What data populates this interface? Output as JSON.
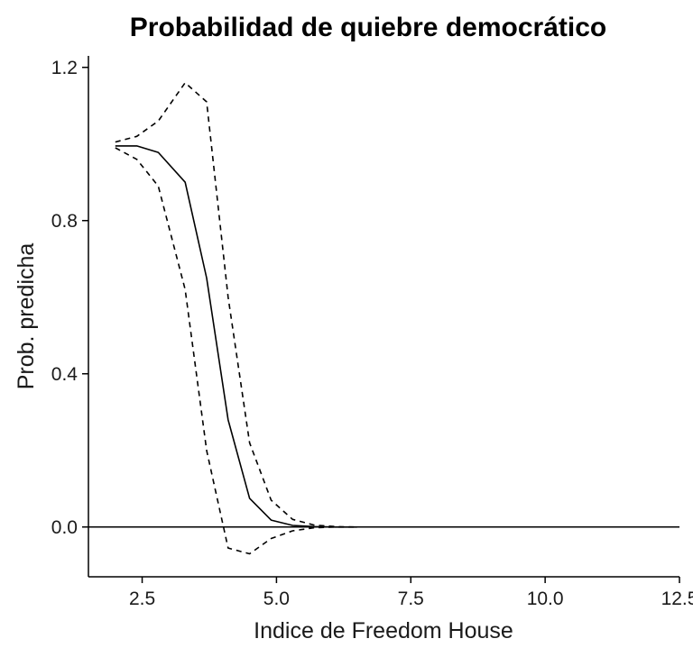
{
  "chart_data": {
    "type": "line",
    "title": "Probabilidad de quiebre democrático",
    "xlabel": "Indice de Freedom House",
    "ylabel": "Prob. predicha",
    "xlim": [
      1.5,
      12.5
    ],
    "ylim": [
      -0.13,
      1.23
    ],
    "xticks": [
      2.5,
      5.0,
      7.5,
      10.0,
      12.5
    ],
    "xtick_labels": [
      "2.5",
      "5.0",
      "7.5",
      "10.0",
      "12.5"
    ],
    "yticks": [
      0.0,
      0.4,
      0.8,
      1.2
    ],
    "ytick_labels": [
      "0.0",
      "0.4",
      "0.8",
      "1.2"
    ],
    "reference_line_y": 0.0,
    "grid": false,
    "series": [
      {
        "style": "solid",
        "x": [
          2.0,
          2.4,
          2.8,
          3.3,
          3.7,
          4.1,
          4.5,
          4.9,
          5.3,
          5.7,
          6.1,
          6.5
        ],
        "y": [
          0.995,
          0.995,
          0.978,
          0.9,
          0.65,
          0.28,
          0.075,
          0.018,
          0.004,
          0.001,
          0.0,
          0.0
        ]
      },
      {
        "style": "dashed",
        "x": [
          2.0,
          2.4,
          2.8,
          3.3,
          3.7,
          4.1,
          4.5,
          4.9,
          5.3,
          5.7,
          6.1,
          6.5
        ],
        "y": [
          1.005,
          1.02,
          1.06,
          1.16,
          1.11,
          0.6,
          0.22,
          0.07,
          0.02,
          0.005,
          0.001,
          0.0
        ]
      },
      {
        "style": "dashed",
        "x": [
          2.0,
          2.4,
          2.8,
          3.3,
          3.7,
          4.1,
          4.5,
          4.9,
          5.3,
          5.7,
          6.1,
          6.5
        ],
        "y": [
          0.99,
          0.96,
          0.89,
          0.62,
          0.2,
          -0.055,
          -0.07,
          -0.03,
          -0.01,
          -0.002,
          0.0,
          0.0
        ]
      }
    ]
  }
}
